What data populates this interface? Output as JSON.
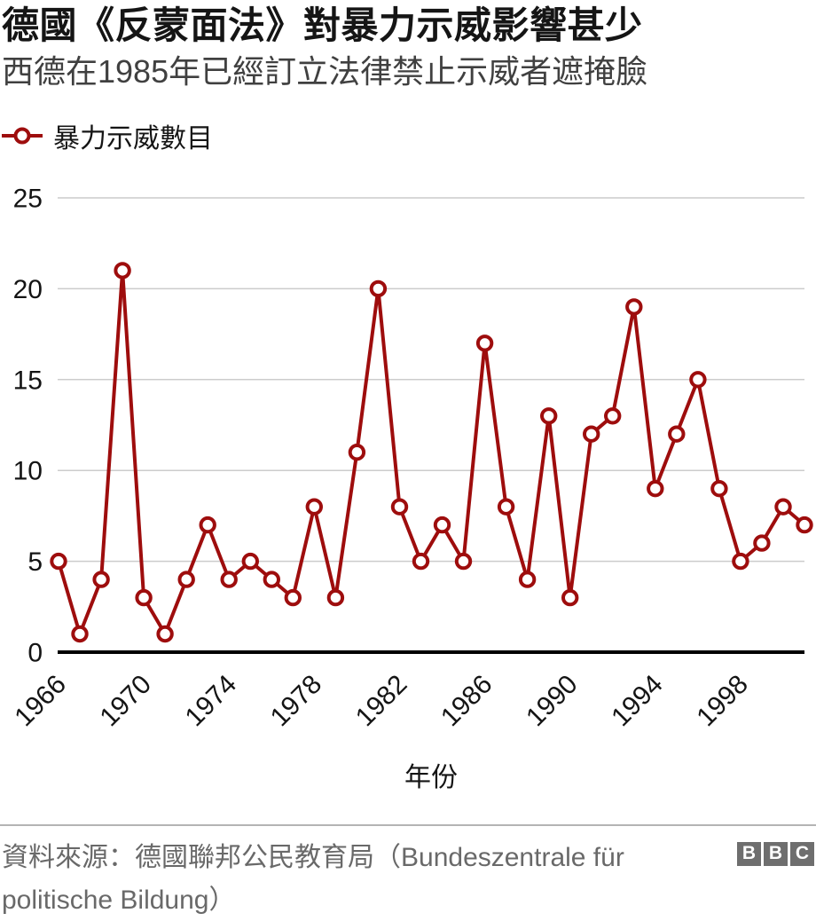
{
  "header": {
    "title": "德國《反蒙面法》對暴力示威影響甚少",
    "subtitle": "西德在1985年已經訂立法律禁止示威者遮掩臉"
  },
  "legend": {
    "label": "暴力示威數目"
  },
  "chart_data": {
    "type": "line",
    "title": "德國《反蒙面法》對暴力示威影響甚少",
    "subtitle": "西德在1985年已經訂立法律禁止示威者遮掩臉",
    "xlabel": "年份",
    "ylabel": "",
    "ylim": [
      0,
      25
    ],
    "yticks": [
      0,
      5,
      10,
      15,
      20,
      25
    ],
    "xticks": [
      1966,
      1970,
      1974,
      1978,
      1982,
      1986,
      1990,
      1994,
      1998
    ],
    "grid": true,
    "legend_position": "top-left",
    "marker": "open-circle",
    "x": [
      1966,
      1967,
      1968,
      1969,
      1970,
      1971,
      1972,
      1973,
      1974,
      1975,
      1976,
      1977,
      1978,
      1979,
      1980,
      1981,
      1982,
      1983,
      1984,
      1985,
      1986,
      1987,
      1988,
      1989,
      1990,
      1991,
      1992,
      1993,
      1994,
      1995,
      1996,
      1997,
      1998,
      1999,
      2000,
      2001
    ],
    "series": [
      {
        "name": "暴力示威數目",
        "color": "#9e0d0d",
        "values": [
          5,
          1,
          4,
          21,
          3,
          1,
          4,
          7,
          4,
          5,
          4,
          3,
          8,
          3,
          11,
          20,
          8,
          5,
          7,
          5,
          17,
          8,
          4,
          13,
          3,
          12,
          13,
          19,
          9,
          12,
          15,
          9,
          5,
          6,
          8,
          7
        ]
      }
    ]
  },
  "footer": {
    "source": "資料來源：德國聯邦公民教育局（Bundeszentrale für politische Bildung）",
    "logo": [
      "B",
      "B",
      "C"
    ]
  },
  "colors": {
    "line": "#9e0d0d",
    "grid": "#cccccc",
    "axis": "#000000",
    "tick_text": "#141414",
    "footer_text": "#696969",
    "logo_bg": "#6e6e6e"
  }
}
